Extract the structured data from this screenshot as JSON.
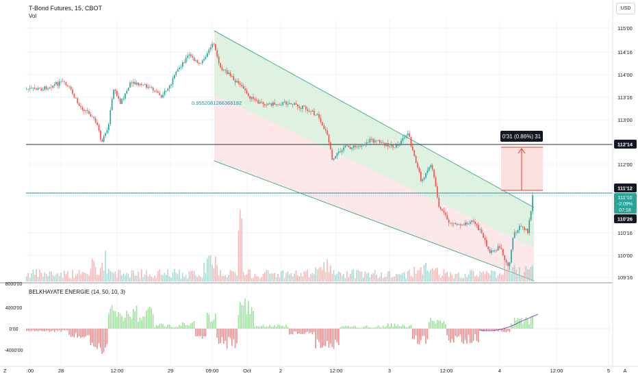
{
  "header": {
    "symbol": "T-Bond Futures, 15, CBOT",
    "volume_label": "Vol"
  },
  "currency_button": "USD",
  "indicator_title": "BELKHAYATE ÉNERGIE (14, 50, 10, 3)",
  "fib_label": "0.9552081266368192",
  "measure_label": "0'31 (0.86%) 31",
  "price_axis": {
    "ticks": [
      "115'00",
      "114'16",
      "114'00",
      "113'16",
      "113'00",
      "112'00",
      "110'16",
      "110'00",
      "109'16"
    ],
    "badges": {
      "level_high": "112'14",
      "level_low": "111'12",
      "current_price": "111'10",
      "current_change": "-2.09%",
      "countdown": "07:18",
      "low_mark": "110'26"
    }
  },
  "indicator_axis": {
    "ticks": [
      "4000'00",
      "0'00",
      "-4000'00"
    ],
    "top_partial": "8000'00"
  },
  "time_axis": {
    "ticks": [
      ":00",
      "28",
      "12:00",
      "29",
      "09:00",
      "Oct",
      "2",
      "12:00",
      "3",
      "12:00",
      "4",
      "12:00",
      "5"
    ],
    "left_button": "Z",
    "right_button": "A"
  },
  "colors": {
    "up": "#26a69a",
    "down": "#ef5350",
    "channel_upper_fill": "#d9efdc",
    "channel_lower_fill": "#fbe3e5",
    "channel_line": "#4caf8f",
    "level_line_dark": "#2a2e39",
    "level_line_teal": "#2a8a9a",
    "measure_fill": "#f6d9d6",
    "measure_line": "#e53935",
    "energy_pos": "#9be39b",
    "energy_neg": "#ef8a8a",
    "badge_dark": "#131722",
    "badge_teal": "#26a69a"
  },
  "chart_data": {
    "type": "candlestick",
    "title": "T-Bond Futures, 15, CBOT",
    "x_ticks": [
      ":00",
      "28",
      "12:00",
      "29",
      "09:00",
      "Oct",
      "2",
      "12:00",
      "3",
      "12:00",
      "4",
      "12:00",
      "5"
    ],
    "y_ticks": [
      "115'00",
      "114'16",
      "114'00",
      "113'16",
      "113'00",
      "112'00",
      "110'16",
      "110'00",
      "109'16"
    ],
    "horizontal_levels": [
      "112'14",
      "111'12"
    ],
    "last_price": "111'10",
    "last_change": "-2.09%",
    "close_path": [
      {
        "x": ":00",
        "close": "113'14"
      },
      {
        "x": "28",
        "close": "113'16"
      },
      {
        "x": "12:00",
        "close": "112'22"
      },
      {
        "x": "29",
        "close": "114'04"
      },
      {
        "x": "09:00",
        "close": "114'24"
      },
      {
        "x": "Oct",
        "close": "113'08"
      },
      {
        "x": "2",
        "close": "112'28"
      },
      {
        "x": "12:00",
        "close": "111'30"
      },
      {
        "x": "3",
        "close": "112'16"
      },
      {
        "x": "12:00",
        "close": "110'26"
      },
      {
        "x": "4",
        "close": "109'30"
      },
      {
        "x": "12:00",
        "close": "111'10"
      }
    ]
  }
}
